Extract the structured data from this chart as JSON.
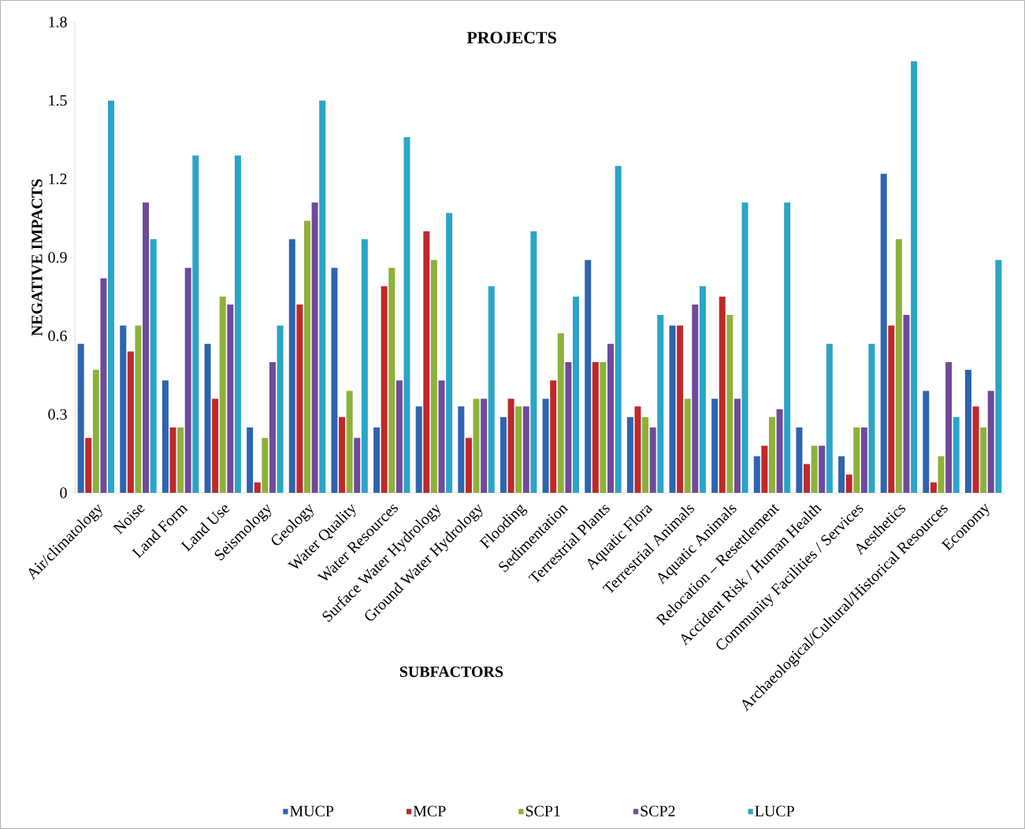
{
  "chart_data": {
    "type": "bar",
    "title": "PROJECTS",
    "xlabel": "SUBFACTORS",
    "ylabel": "NEGATIVE IMPACTS",
    "categories": [
      "Air/climatology",
      "Noise",
      "Land Form",
      "Land Use",
      "Seismology",
      "Geology",
      "Water Quality",
      "Water Resources",
      "Surface Water Hydrology",
      "Ground Water Hydrology",
      "Flooding",
      "Sedimentation",
      "Terrestrial Plants",
      "Aquatic Flora",
      "Terrestrial Animals",
      "Aquatic Animals",
      "Relocation – Resettlement",
      "Accident Risk / Human Health",
      "Community Facilities / Services",
      "Aesthetics",
      "Archaeological/Cultural/Historical Resources",
      "Economy"
    ],
    "series": [
      {
        "name": "MUCP",
        "color": "#2e64b0",
        "values": [
          0.57,
          0.64,
          0.43,
          0.57,
          0.25,
          0.97,
          0.86,
          0.25,
          0.33,
          0.33,
          0.29,
          0.36,
          0.89,
          0.29,
          0.64,
          0.36,
          0.14,
          0.25,
          0.14,
          1.22,
          0.39,
          0.47
        ]
      },
      {
        "name": "MCP",
        "color": "#c0282a",
        "values": [
          0.21,
          0.54,
          0.25,
          0.36,
          0.04,
          0.72,
          0.29,
          0.79,
          1.0,
          0.21,
          0.36,
          0.43,
          0.5,
          0.33,
          0.64,
          0.75,
          0.18,
          0.11,
          0.07,
          0.64,
          0.04,
          0.33
        ]
      },
      {
        "name": "SCP1",
        "color": "#8db13a",
        "values": [
          0.47,
          0.64,
          0.25,
          0.75,
          0.21,
          1.04,
          0.39,
          0.86,
          0.89,
          0.36,
          0.33,
          0.61,
          0.5,
          0.29,
          0.36,
          0.68,
          0.29,
          0.18,
          0.25,
          0.97,
          0.14,
          0.25
        ]
      },
      {
        "name": "SCP2",
        "color": "#6f4a9a",
        "values": [
          0.82,
          1.11,
          0.86,
          0.72,
          0.5,
          1.11,
          0.21,
          0.43,
          0.43,
          0.36,
          0.33,
          0.5,
          0.57,
          0.25,
          0.72,
          0.36,
          0.32,
          0.18,
          0.25,
          0.68,
          0.5,
          0.39
        ]
      },
      {
        "name": "LUCP",
        "color": "#2aa5c6",
        "values": [
          1.5,
          0.97,
          1.29,
          1.29,
          0.64,
          1.5,
          0.97,
          1.36,
          1.07,
          0.79,
          1.0,
          0.75,
          1.25,
          0.68,
          0.79,
          1.11,
          1.11,
          0.57,
          0.57,
          1.65,
          0.29,
          0.89
        ]
      }
    ],
    "ylim": [
      0,
      1.8
    ],
    "yticks": [
      0,
      0.3,
      0.6,
      0.9,
      1.2,
      1.5,
      1.8
    ],
    "grid": false,
    "legend": "bottom"
  }
}
